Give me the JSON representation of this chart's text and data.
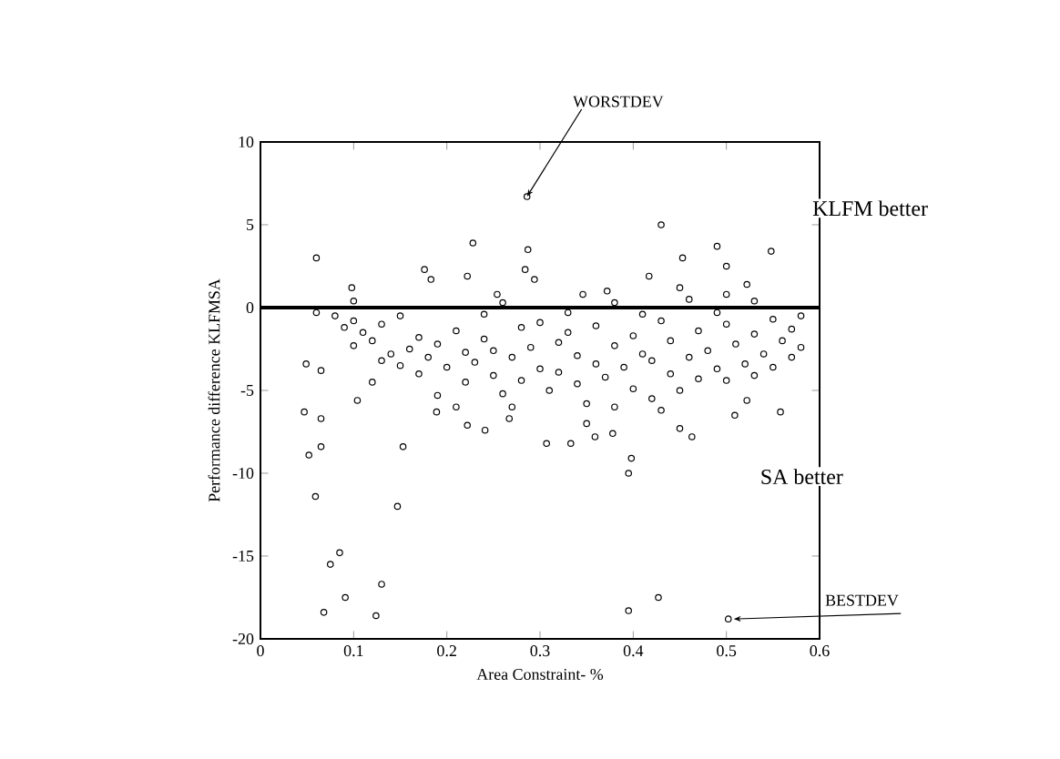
{
  "chart_data": {
    "type": "scatter",
    "xlabel": "Area Constraint- %",
    "ylabel": "Performance difference KLFMSA",
    "xlim": [
      0,
      0.6
    ],
    "ylim": [
      -20,
      10
    ],
    "xticks": [
      0,
      0.1,
      0.2,
      0.3,
      0.4,
      0.5,
      0.6
    ],
    "yticks": [
      -20,
      -15,
      -10,
      -5,
      0,
      5,
      10
    ],
    "marker": "circle",
    "color": "#000000",
    "ref_lines": [
      {
        "axis": "y",
        "value": 0,
        "color": "#000000"
      }
    ],
    "annotations": [
      {
        "text": "WORSTDEV",
        "x": 0.286,
        "y": 6.7
      },
      "KLFM better",
      "SA better",
      {
        "text": "BESTDEV",
        "x": 0.502,
        "y": -18.8
      }
    ],
    "x": [
      0.286,
      0.43,
      0.228,
      0.06,
      0.287,
      0.49,
      0.548,
      0.453,
      0.5,
      0.284,
      0.294,
      0.176,
      0.183,
      0.222,
      0.417,
      0.522,
      0.45,
      0.098,
      0.254,
      0.346,
      0.372,
      0.5,
      0.049,
      0.065,
      0.047,
      0.065,
      0.052,
      0.065,
      0.059,
      0.147,
      0.085,
      0.075,
      0.13,
      0.091,
      0.068,
      0.124,
      0.395,
      0.427,
      0.502,
      0.104,
      0.153,
      0.398,
      0.395,
      0.558,
      0.522,
      0.509,
      0.463,
      0.45,
      0.307,
      0.333,
      0.359,
      0.378,
      0.222,
      0.241,
      0.267,
      0.189,
      0.08,
      0.09,
      0.1,
      0.11,
      0.1,
      0.12,
      0.13,
      0.14,
      0.15,
      0.13,
      0.16,
      0.17,
      0.18,
      0.17,
      0.19,
      0.2,
      0.21,
      0.22,
      0.22,
      0.23,
      0.24,
      0.25,
      0.25,
      0.26,
      0.27,
      0.28,
      0.28,
      0.29,
      0.3,
      0.3,
      0.31,
      0.32,
      0.32,
      0.33,
      0.34,
      0.34,
      0.35,
      0.36,
      0.36,
      0.37,
      0.38,
      0.38,
      0.39,
      0.4,
      0.4,
      0.41,
      0.42,
      0.42,
      0.43,
      0.44,
      0.44,
      0.45,
      0.46,
      0.47,
      0.47,
      0.48,
      0.49,
      0.5,
      0.5,
      0.51,
      0.52,
      0.53,
      0.53,
      0.54,
      0.55,
      0.55,
      0.56,
      0.57,
      0.57,
      0.58,
      0.58,
      0.12,
      0.19,
      0.27,
      0.35,
      0.43,
      0.21,
      0.06,
      0.24,
      0.33,
      0.41,
      0.49,
      0.15,
      0.46,
      0.53,
      0.38,
      0.26,
      0.1
    ],
    "values": [
      6.7,
      5.0,
      3.9,
      3.0,
      3.5,
      3.7,
      3.4,
      3.0,
      2.5,
      2.3,
      1.7,
      2.3,
      1.7,
      1.9,
      1.9,
      1.4,
      1.2,
      1.2,
      0.8,
      0.8,
      1.0,
      0.8,
      -3.4,
      -3.8,
      -6.3,
      -6.7,
      -8.9,
      -8.4,
      -11.4,
      -12.0,
      -14.8,
      -15.5,
      -16.7,
      -17.5,
      -18.4,
      -18.6,
      -18.3,
      -17.5,
      -18.8,
      -5.6,
      -8.4,
      -9.1,
      -10.0,
      -6.3,
      -5.6,
      -6.5,
      -7.8,
      -7.3,
      -8.2,
      -8.2,
      -7.8,
      -7.6,
      -7.1,
      -7.4,
      -6.7,
      -6.3,
      -0.5,
      -1.2,
      -0.8,
      -1.5,
      -2.3,
      -2.0,
      -1.0,
      -2.8,
      -3.5,
      -3.2,
      -2.5,
      -1.8,
      -3.0,
      -4.0,
      -2.2,
      -3.6,
      -1.4,
      -2.7,
      -4.5,
      -3.3,
      -1.9,
      -4.1,
      -2.6,
      -5.2,
      -3.0,
      -1.2,
      -4.4,
      -2.4,
      -3.7,
      -0.9,
      -5.0,
      -2.1,
      -3.9,
      -1.5,
      -4.6,
      -2.9,
      -5.8,
      -3.4,
      -1.1,
      -4.2,
      -2.3,
      -6.0,
      -3.6,
      -1.7,
      -4.9,
      -2.8,
      -5.5,
      -3.2,
      -0.8,
      -4.0,
      -2.0,
      -5.0,
      -3.0,
      -1.4,
      -4.3,
      -2.6,
      -3.7,
      -1.0,
      -4.4,
      -2.2,
      -3.4,
      -1.6,
      -4.1,
      -2.8,
      -3.6,
      -0.7,
      -2.0,
      -1.3,
      -3.0,
      -0.5,
      -2.4,
      -4.5,
      -5.3,
      -6.0,
      -7.0,
      -6.2,
      -6.0,
      -0.3,
      -0.4,
      -0.3,
      -0.4,
      -0.3,
      -0.5,
      0.5,
      0.4,
      0.3,
      0.3,
      0.4
    ]
  }
}
